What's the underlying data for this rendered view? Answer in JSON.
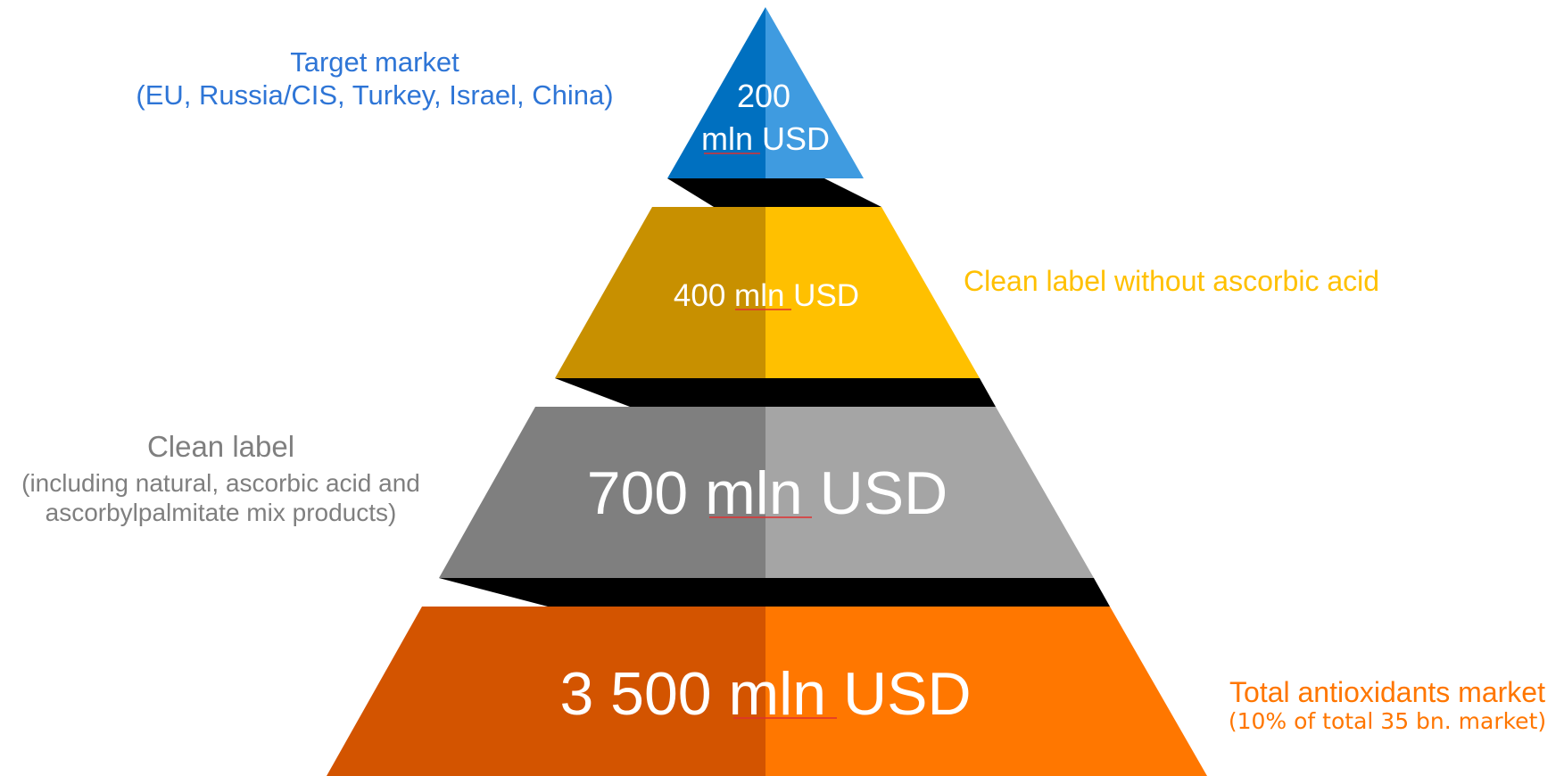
{
  "tiers": [
    {
      "id": "target",
      "lines": [
        "200",
        "mln USD"
      ],
      "colors": {
        "left": "#0070c0",
        "right": "#3f9be0"
      }
    },
    {
      "id": "clean_no_ascorbic",
      "lines": [
        "400 mln USD"
      ],
      "colors": {
        "left": "#c89000",
        "right": "#ffc000"
      }
    },
    {
      "id": "clean_label",
      "lines": [
        "700 mln USD"
      ],
      "colors": {
        "left": "#7f7f7f",
        "right": "#a5a5a5"
      }
    },
    {
      "id": "total",
      "lines": [
        "3 500 mln USD"
      ],
      "colors": {
        "left": "#d35400",
        "right": "#ff7700"
      }
    }
  ],
  "connector_color": "#000000",
  "labels": {
    "target": {
      "line1": "Target market",
      "line2": "(EU, Russia/CIS, Turkey, Israel, China)",
      "color": "#2e75d6"
    },
    "clean_no_ascorbic": {
      "line1": "Clean label without ascorbic acid",
      "color": "#ffc000"
    },
    "clean_label": {
      "line1": "Clean label",
      "line2": "(including natural, ascorbic acid and",
      "line3": "ascorbylpalmitate mix products)",
      "color": "#7f7f7f"
    },
    "total": {
      "line1": "Total antioxidants market",
      "line2": "(10% of total 35 bn. market)",
      "color": "#ff7600"
    }
  }
}
